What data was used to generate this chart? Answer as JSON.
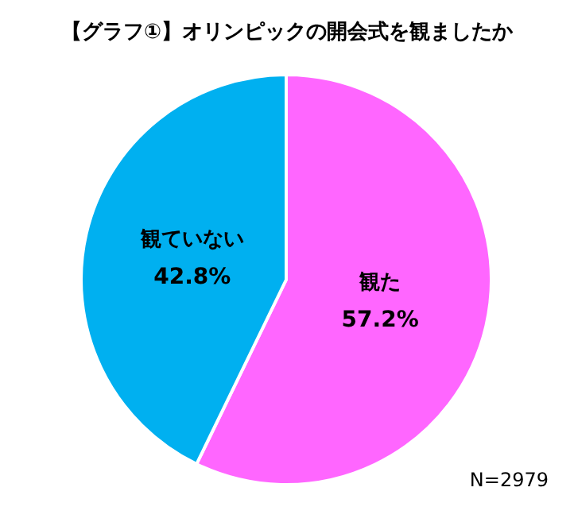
{
  "chart_data": {
    "type": "pie",
    "title": "【グラフ①】オリンピックの開会式を観ましたか",
    "categories": [
      "観た",
      "観ていない"
    ],
    "values": [
      57.2,
      42.8
    ],
    "colors": [
      "#ff66ff",
      "#00b0f0"
    ],
    "value_labels": [
      "57.2%",
      "42.8%"
    ],
    "legend": false,
    "annotations": [
      "N=2979"
    ]
  }
}
